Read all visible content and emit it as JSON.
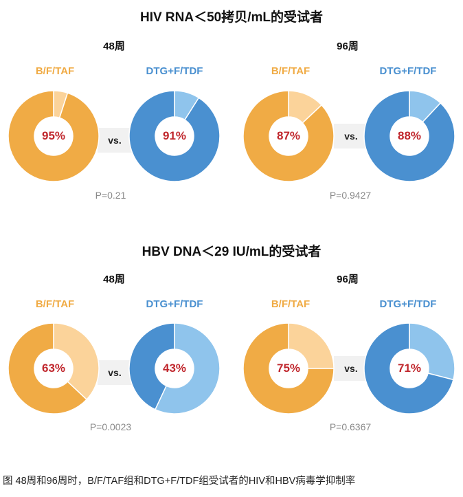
{
  "caption": "图 48周和96周时，B/F/TAF组和DTG+F/TDF组受试者的HIV和HBV病毒学抑制率",
  "vs_label": "vs.",
  "colors": {
    "btaf_main": "#f0ab45",
    "btaf_rest": "#fbd39a",
    "dtg_main": "#4a90d0",
    "dtg_rest": "#8fc4ec",
    "pct_text": "#c0272d"
  },
  "chart_data": [
    {
      "type": "pie",
      "title": "HIV RNA＜50拷贝/mL的受试者",
      "panels": [
        {
          "week": "48周",
          "p_value": "P=0.21",
          "series": [
            {
              "name": "B/F/TAF",
              "value": 95,
              "label": "95%"
            },
            {
              "name": "DTG+F/TDF",
              "value": 91,
              "label": "91%"
            }
          ]
        },
        {
          "week": "96周",
          "p_value": "P=0.9427",
          "series": [
            {
              "name": "B/F/TAF",
              "value": 87,
              "label": "87%"
            },
            {
              "name": "DTG+F/TDF",
              "value": 88,
              "label": "88%"
            }
          ]
        }
      ]
    },
    {
      "type": "pie",
      "title": "HBV DNA＜29 IU/mL的受试者",
      "panels": [
        {
          "week": "48周",
          "p_value": "P=0.0023",
          "series": [
            {
              "name": "B/F/TAF",
              "value": 63,
              "label": "63%"
            },
            {
              "name": "DTG+F/TDF",
              "value": 43,
              "label": "43%"
            }
          ]
        },
        {
          "week": "96周",
          "p_value": "P=0.6367",
          "series": [
            {
              "name": "B/F/TAF",
              "value": 75,
              "label": "75%"
            },
            {
              "name": "DTG+F/TDF",
              "value": 71,
              "label": "71%"
            }
          ]
        }
      ]
    }
  ]
}
